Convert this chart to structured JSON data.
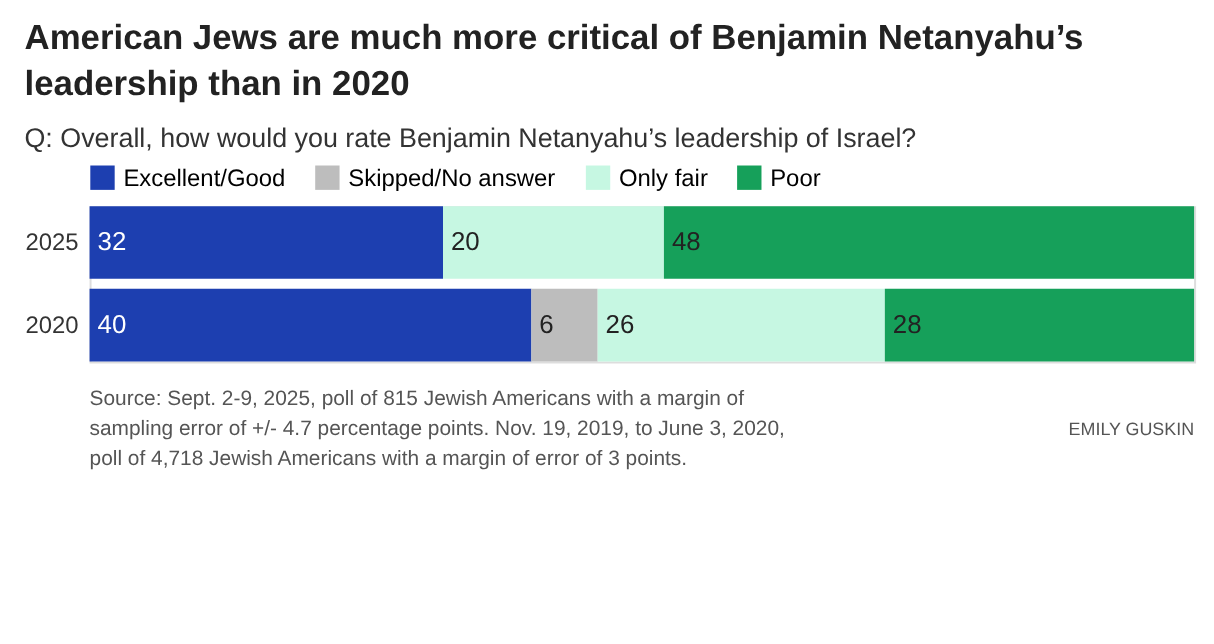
{
  "chart_data": {
    "type": "bar",
    "orientation": "horizontal",
    "stacked": true,
    "data_labels": true,
    "legend": "top left",
    "title": "American Jews are much more critical of Benjamin Netanyahu’s leadership than in 2020",
    "subtitle": "Q: Overall, how would you rate Benjamin Netanyahu’s leadership of Israel?",
    "categories": [
      "2025",
      "2020"
    ],
    "series": [
      {
        "name": "Excellent/Good",
        "color": "#1d3fb0",
        "values": [
          32,
          40
        ]
      },
      {
        "name": "Skipped/No answer",
        "color": "#bdbdbd",
        "values": [
          null,
          6
        ]
      },
      {
        "name": "Only fair",
        "color": "#c6f7e2",
        "values": [
          20,
          26
        ]
      },
      {
        "name": "Poor",
        "color": "#16a05a",
        "values": [
          48,
          28
        ]
      }
    ],
    "annotations": [
      "Source: Sept. 2-9, 2025, poll of 815 Jewish Americans with a margin of sampling error of +/- 4.7 percentage points. Nov. 19, 2019, to June 3, 2020, poll of 4,718 Jewish Americans with a margin of error of 3 points.",
      "EMILY GUSKIN"
    ]
  }
}
